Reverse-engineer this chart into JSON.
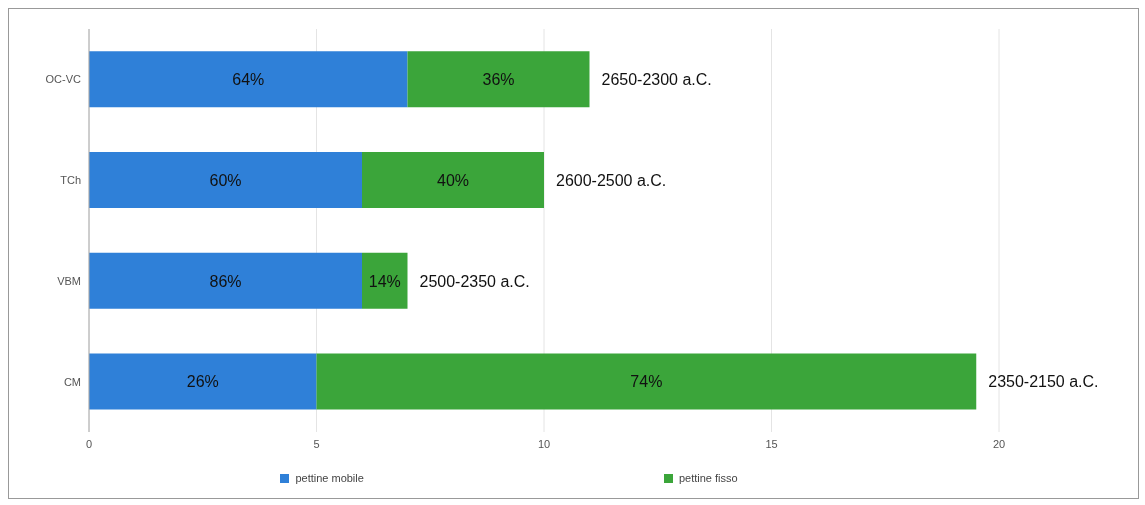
{
  "chart_data": {
    "type": "bar",
    "orientation": "horizontal",
    "stacked": true,
    "categories": [
      "OC-VC",
      "TCh",
      "VBM",
      "CM"
    ],
    "series": [
      {
        "name": "pettine mobile",
        "color": "#2f80d8",
        "values": [
          7,
          6,
          6,
          5
        ]
      },
      {
        "name": "pettine fisso",
        "color": "#3ba53a",
        "values": [
          4,
          4,
          1,
          14.5
        ]
      }
    ],
    "xlim": [
      0,
      20
    ],
    "xticks": [
      0,
      5,
      10,
      15,
      20
    ],
    "grid": "x",
    "legend": "bottom",
    "annotations": [
      "64%",
      "36%",
      "60%",
      "40%",
      "86%",
      "14%",
      "26%",
      "74%",
      {
        "text": "2650-2300 a.C.",
        "x": 11,
        "y": "OC-VC"
      },
      {
        "text": "2600-2500 a.C.",
        "x": 10,
        "y": "TCh"
      },
      {
        "text": "2500-2350 a.C.",
        "x": 7,
        "y": "VBM"
      },
      {
        "text": "2350-2150 a.C.",
        "x": 19.5,
        "y": "CM"
      }
    ]
  }
}
